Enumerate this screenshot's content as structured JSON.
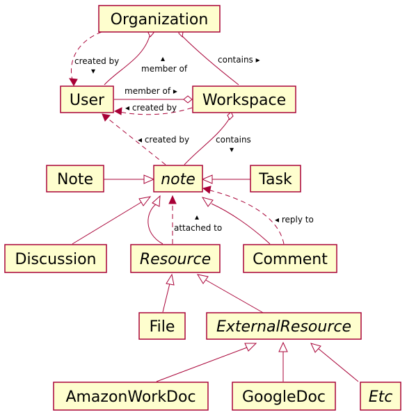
{
  "classes": {
    "organization": "Organization",
    "user": "User",
    "workspace": "Workspace",
    "note_abstract": "note",
    "note": "Note",
    "task": "Task",
    "discussion": "Discussion",
    "resource": "Resource",
    "comment": "Comment",
    "file": "File",
    "external_resource": "ExternalResource",
    "amazon_work_doc": "AmazonWorkDoc",
    "google_doc": "GoogleDoc",
    "etc": "Etc"
  },
  "relations": {
    "org_user_created_by": "created by",
    "org_user_created_by_arrow": "▾",
    "org_user_member_of_arrow": "▴",
    "org_user_member_of": "member of",
    "org_workspace_contains": "contains ▸",
    "user_workspace_member_of": "member of ▸",
    "workspace_user_created_by": "◂ created by",
    "note_user_created_by": "◂ created by",
    "workspace_note_contains": "contains",
    "workspace_note_contains_arrow": "▾",
    "resource_note_attached_arrow": "▴",
    "resource_note_attached_to": "attached to",
    "comment_note_reply_to": "◂ reply to"
  },
  "colors": {
    "class_fill": "#fefece",
    "class_border": "#a80036",
    "edge": "#a80036"
  }
}
